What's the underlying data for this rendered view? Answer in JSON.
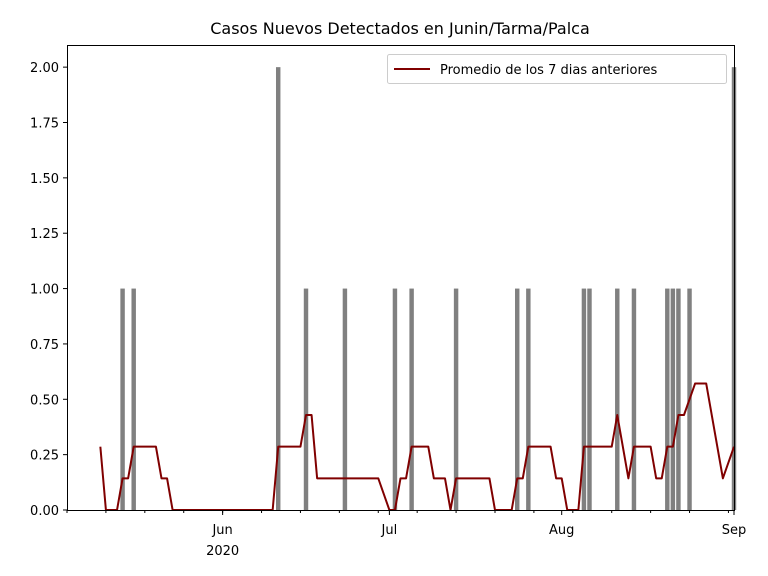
{
  "chart_data": {
    "type": "bar",
    "title": "Casos Nuevos Detectados en Junin/Tarma/Palca",
    "xlabel": "",
    "ylabel": "",
    "ylim": [
      0,
      2.1
    ],
    "xlim": [
      "2020-05-04",
      "2020-09-01"
    ],
    "yticks": [
      "0.00",
      "0.25",
      "0.50",
      "0.75",
      "1.00",
      "1.25",
      "1.50",
      "1.75",
      "2.00"
    ],
    "xticks": [
      {
        "date": "2020-06-01",
        "label": "Jun",
        "sublabel": "2020"
      },
      {
        "date": "2020-07-01",
        "label": "Jul",
        "sublabel": ""
      },
      {
        "date": "2020-08-01",
        "label": "Aug",
        "sublabel": ""
      },
      {
        "date": "2020-09-01",
        "label": "Sep",
        "sublabel": ""
      }
    ],
    "grid": false,
    "legend_position": "top-right",
    "bar_color": "#808080",
    "line_color": "#800000",
    "bars": {
      "dates": [
        "2020-05-14",
        "2020-05-16",
        "2020-06-11",
        "2020-06-16",
        "2020-06-23",
        "2020-07-02",
        "2020-07-05",
        "2020-07-13",
        "2020-07-24",
        "2020-07-26",
        "2020-08-05",
        "2020-08-06",
        "2020-08-11",
        "2020-08-14",
        "2020-08-20",
        "2020-08-21",
        "2020-08-22",
        "2020-08-24",
        "2020-09-01"
      ],
      "values": [
        1,
        1,
        2,
        1,
        1,
        1,
        1,
        1,
        1,
        1,
        1,
        1,
        1,
        1,
        1,
        1,
        1,
        1,
        2
      ]
    },
    "series": [
      {
        "name": "Promedio de los 7 dias anteriores",
        "kind": "line",
        "dates": [
          "2020-05-10",
          "2020-05-11",
          "2020-05-13",
          "2020-05-14",
          "2020-05-15",
          "2020-05-16",
          "2020-05-20",
          "2020-05-21",
          "2020-05-22",
          "2020-05-23",
          "2020-06-10",
          "2020-06-11",
          "2020-06-15",
          "2020-06-16",
          "2020-06-17",
          "2020-06-18",
          "2020-06-28",
          "2020-06-29",
          "2020-07-01",
          "2020-07-02",
          "2020-07-03",
          "2020-07-04",
          "2020-07-05",
          "2020-07-08",
          "2020-07-09",
          "2020-07-11",
          "2020-07-12",
          "2020-07-13",
          "2020-07-19",
          "2020-07-20",
          "2020-07-23",
          "2020-07-24",
          "2020-07-25",
          "2020-07-26",
          "2020-07-30",
          "2020-07-31",
          "2020-08-01",
          "2020-08-02",
          "2020-08-03",
          "2020-08-04",
          "2020-08-05",
          "2020-08-10",
          "2020-08-11",
          "2020-08-13",
          "2020-08-14",
          "2020-08-17",
          "2020-08-18",
          "2020-08-19",
          "2020-08-20",
          "2020-08-21",
          "2020-08-22",
          "2020-08-23",
          "2020-08-25",
          "2020-08-27",
          "2020-08-29",
          "2020-08-30",
          "2020-09-01"
        ],
        "values": [
          0.286,
          0,
          0,
          0.143,
          0.143,
          0.286,
          0.286,
          0.143,
          0.143,
          0,
          0,
          0.286,
          0.286,
          0.429,
          0.429,
          0.143,
          0.143,
          0.143,
          0,
          0,
          0.143,
          0.143,
          0.286,
          0.286,
          0.143,
          0.143,
          0,
          0.143,
          0.143,
          0,
          0,
          0.143,
          0.143,
          0.286,
          0.286,
          0.143,
          0.143,
          0,
          0,
          0,
          0.286,
          0.286,
          0.429,
          0.143,
          0.286,
          0.286,
          0.143,
          0.143,
          0.286,
          0.286,
          0.429,
          0.429,
          0.571,
          0.571,
          0.286,
          0.143,
          0.286
        ]
      }
    ]
  }
}
